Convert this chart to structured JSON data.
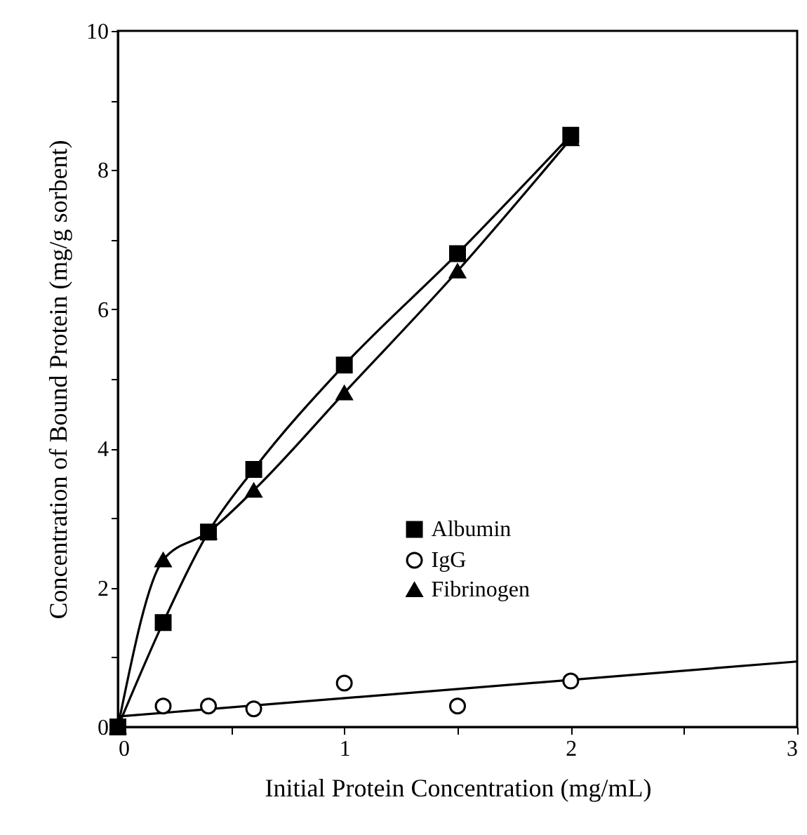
{
  "chart_data": {
    "type": "line",
    "xlabel": "Initial Protein Concentration (mg/mL)",
    "ylabel": "Concentration of Bound Protein (mg/g sorbent)",
    "xlim": [
      0,
      3
    ],
    "ylim": [
      0,
      10
    ],
    "xticks": [
      0,
      {
        "value": 0.5,
        "label": null
      },
      1,
      {
        "value": 1.5,
        "label": null
      },
      2,
      {
        "value": 2.5,
        "label": null
      },
      3
    ],
    "yticks": [
      0,
      {
        "value": 1,
        "label": null
      },
      2,
      {
        "value": 3,
        "label": null
      },
      4,
      {
        "value": 5,
        "label": null
      },
      6,
      {
        "value": 7,
        "label": null
      },
      8,
      {
        "value": 9,
        "label": null
      },
      10
    ],
    "grid": false,
    "legend": "right",
    "series": [
      {
        "name": "Albumin",
        "marker": "square",
        "color": "#000000",
        "x": [
          0,
          0.2,
          0.4,
          0.6,
          1,
          1.5,
          2
        ],
        "values": [
          0,
          1.5,
          2.8,
          3.7,
          5.2,
          6.8,
          8.5
        ]
      },
      {
        "name": "IgG",
        "type": "scatter",
        "marker": "circle",
        "color": "#000000",
        "x": [
          0.2,
          0.4,
          0.6,
          1,
          1.5,
          2
        ],
        "values": [
          0.3,
          0.3,
          0.26,
          0.63,
          0.3,
          0.66
        ]
      },
      {
        "name": "Fibrinogen",
        "marker": "triangle",
        "color": "#000000",
        "x": [
          0,
          0.2,
          0.4,
          0.6,
          1,
          1.5,
          2
        ],
        "values": [
          0,
          2.4,
          2.8,
          3.4,
          4.8,
          6.55,
          8.45
        ]
      },
      {
        "marker": "none",
        "color": "#000000",
        "x": [
          0,
          3
        ],
        "values": [
          0.15,
          0.94
        ]
      }
    ]
  }
}
